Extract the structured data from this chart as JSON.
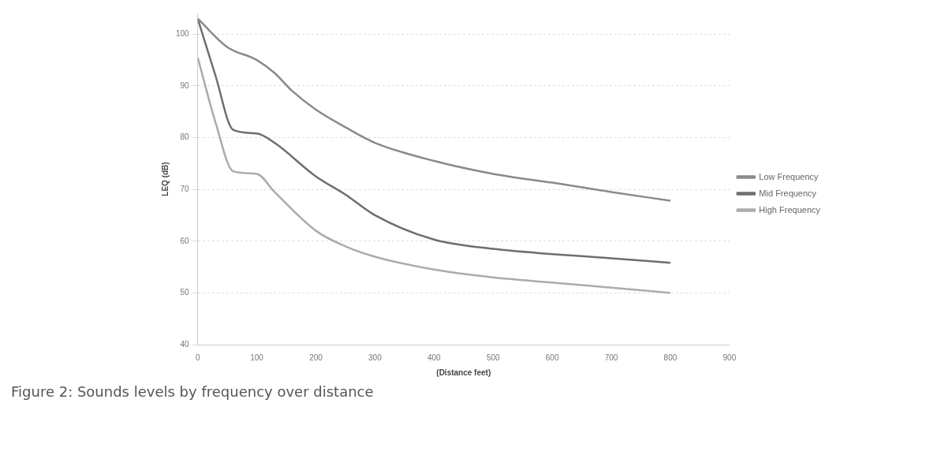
{
  "chart_data": {
    "type": "line",
    "xlabel": "(Distance feet)",
    "ylabel": "LEQ (dB)",
    "annotations": [
      "Figure 2: Sounds levels by frequency over distance"
    ],
    "xlim": [
      0,
      900
    ],
    "xticks": [
      0,
      100,
      200,
      300,
      400,
      500,
      600,
      700,
      800,
      900
    ],
    "ylim": [
      40,
      104
    ],
    "yticks": [
      40,
      50,
      60,
      70,
      80,
      90,
      100
    ],
    "grid": "y",
    "legend": "right",
    "marker": "none",
    "line_style": "solid",
    "series": [
      {
        "name": "Low Frequency",
        "color": "#8a8a8a",
        "x": [
          0,
          50,
          100,
          130,
          160,
          200,
          250,
          300,
          400,
          500,
          600,
          700,
          800
        ],
        "values": [
          103,
          97.5,
          95,
          92.5,
          89,
          85.4,
          82,
          79,
          75.5,
          73,
          71.3,
          69.5,
          67.8
        ]
      },
      {
        "name": "Mid Frequency",
        "color": "#6e6e6e",
        "x": [
          0,
          30,
          60,
          100,
          130,
          200,
          250,
          300,
          400,
          500,
          600,
          700,
          800
        ],
        "values": [
          103,
          92,
          81.5,
          80.8,
          79,
          72.5,
          69,
          65,
          60.3,
          58.5,
          57.5,
          56.7,
          55.8
        ]
      },
      {
        "name": "High Frequency",
        "color": "#ababab",
        "x": [
          0,
          30,
          60,
          100,
          130,
          200,
          250,
          300,
          400,
          500,
          600,
          700,
          800
        ],
        "values": [
          95.5,
          83,
          73.5,
          73,
          69.5,
          62,
          59,
          57,
          54.5,
          53,
          52,
          51,
          50
        ]
      }
    ]
  }
}
